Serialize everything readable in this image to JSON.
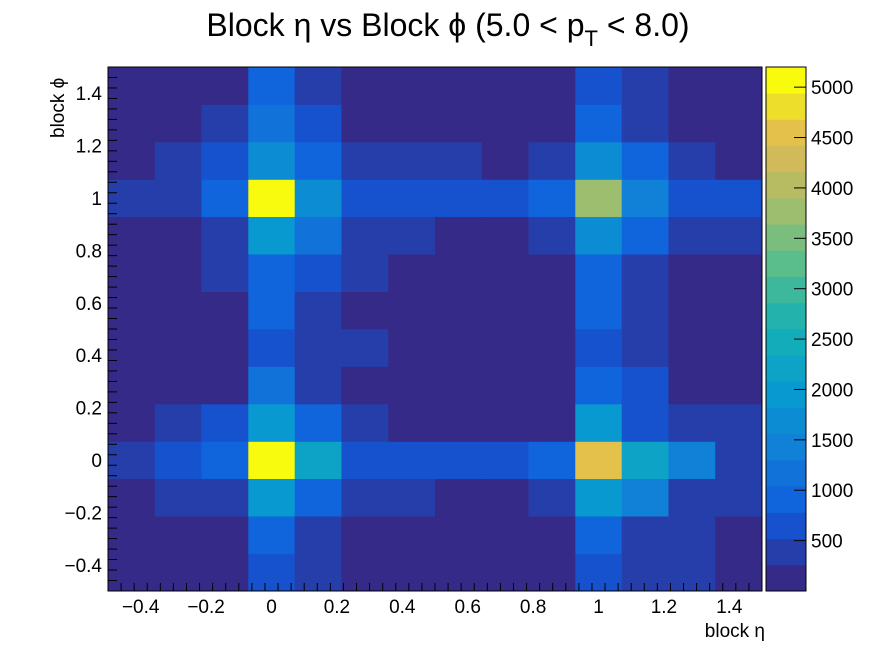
{
  "chart_data": {
    "type": "heatmap",
    "title": {
      "prefix": "Block ",
      "eta": "η",
      "middle": " vs Block ",
      "phi": "ϕ",
      "cut_open": " (5.0 < p",
      "cut_sub": "T",
      "cut_close": " < 8.0)"
    },
    "xlabel": "block η",
    "ylabel": "block ϕ",
    "xlim": [
      -0.5,
      1.5
    ],
    "ylim": [
      -0.5,
      1.5
    ],
    "zlim": [
      0,
      5200
    ],
    "x_edges": [
      -0.5,
      -0.357,
      -0.214,
      -0.071,
      0.071,
      0.214,
      0.357,
      0.5,
      0.643,
      0.786,
      0.929,
      1.071,
      1.214,
      1.357,
      1.5
    ],
    "y_edges": [
      -0.5,
      -0.357,
      -0.214,
      -0.071,
      0.071,
      0.214,
      0.357,
      0.5,
      0.643,
      0.786,
      0.929,
      1.071,
      1.214,
      1.357,
      1.5
    ],
    "x_tick_values": [
      -0.4,
      -0.2,
      0,
      0.2,
      0.4,
      0.6,
      0.8,
      1,
      1.2,
      1.4
    ],
    "x_tick_labels": [
      "−0.4",
      "−0.2",
      "0",
      "0.2",
      "0.4",
      "0.6",
      "0.8",
      "1",
      "1.2",
      "1.4"
    ],
    "y_tick_values": [
      -0.4,
      -0.2,
      0,
      0.2,
      0.4,
      0.6,
      0.8,
      1,
      1.2,
      1.4
    ],
    "y_tick_labels": [
      "−0.4",
      "−0.2",
      "0",
      "0.2",
      "0.4",
      "0.6",
      "0.8",
      "1",
      "1.2",
      "1.4"
    ],
    "z_tick_values": [
      500,
      1000,
      1500,
      2000,
      2500,
      3000,
      3500,
      4000,
      4500,
      5000
    ],
    "z_tick_labels": [
      "500",
      "1000",
      "1500",
      "2000",
      "2500",
      "3000",
      "3500",
      "4000",
      "4500",
      "5000"
    ],
    "values_row_order_note": "rows listed from bottom (phi=-0.43) to top (phi=1.43); columns from left (eta=-0.43) to right (eta=1.43)",
    "values": [
      [
        100,
        100,
        100,
        700,
        500,
        100,
        100,
        100,
        100,
        100,
        700,
        500,
        500,
        100
      ],
      [
        100,
        100,
        100,
        1000,
        500,
        100,
        100,
        100,
        100,
        100,
        1000,
        500,
        500,
        100
      ],
      [
        100,
        500,
        500,
        1900,
        1000,
        500,
        500,
        100,
        100,
        500,
        1900,
        1300,
        500,
        500
      ],
      [
        500,
        700,
        1000,
        5200,
        2100,
        700,
        600,
        600,
        600,
        1000,
        4500,
        2100,
        1400,
        500
      ],
      [
        100,
        500,
        700,
        2000,
        1000,
        500,
        100,
        100,
        100,
        100,
        2000,
        700,
        500,
        500
      ],
      [
        100,
        100,
        100,
        1200,
        500,
        100,
        100,
        100,
        100,
        100,
        1000,
        700,
        100,
        100
      ],
      [
        100,
        100,
        100,
        700,
        500,
        500,
        100,
        100,
        100,
        100,
        700,
        500,
        100,
        100
      ],
      [
        100,
        100,
        100,
        1000,
        500,
        100,
        100,
        100,
        100,
        100,
        900,
        500,
        100,
        100
      ],
      [
        100,
        100,
        500,
        1000,
        700,
        500,
        100,
        100,
        100,
        100,
        900,
        500,
        100,
        100
      ],
      [
        100,
        100,
        500,
        1900,
        1100,
        500,
        500,
        100,
        100,
        500,
        1800,
        900,
        500,
        500
      ],
      [
        500,
        500,
        900,
        5200,
        1800,
        700,
        700,
        600,
        600,
        900,
        3700,
        1500,
        700,
        700
      ],
      [
        100,
        500,
        700,
        1800,
        1000,
        500,
        500,
        500,
        100,
        500,
        1600,
        800,
        500,
        100
      ],
      [
        100,
        100,
        500,
        1200,
        700,
        100,
        100,
        100,
        100,
        100,
        800,
        500,
        100,
        100
      ],
      [
        100,
        100,
        100,
        900,
        500,
        100,
        100,
        100,
        100,
        100,
        700,
        500,
        100,
        100
      ]
    ]
  }
}
